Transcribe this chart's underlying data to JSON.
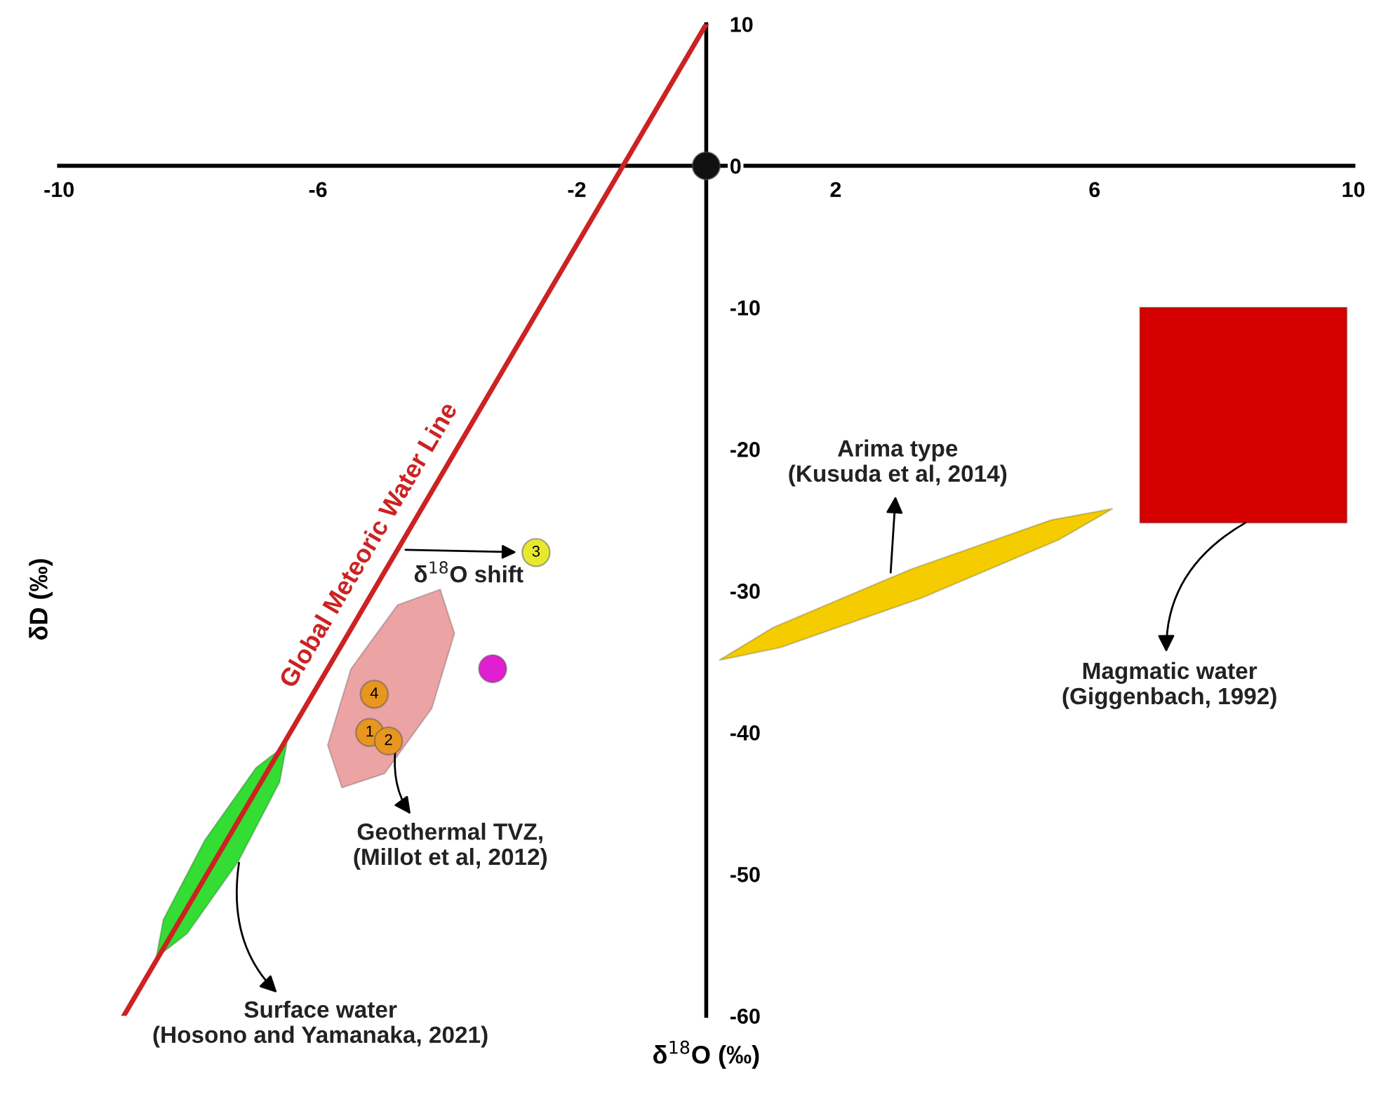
{
  "chart_data": {
    "type": "scatter",
    "xlabel": "δ$^{18}$O (‰)",
    "ylabel": "δD (‰)",
    "xlim": [
      -10,
      10
    ],
    "ylim": [
      -60,
      10
    ],
    "xticks": [
      -10,
      -6,
      -2,
      2,
      6,
      10
    ],
    "yticks": [
      10,
      0,
      -10,
      -20,
      -30,
      -40,
      -50,
      -60
    ],
    "series": [
      {
        "type": "line",
        "name": "Global Meteoric Water Line",
        "color": "#cc2222",
        "x": [
          -9.0,
          0
        ],
        "values": [
          -60,
          10
        ]
      },
      {
        "type": "area",
        "color": "#33dd33",
        "x": [
          -6.48,
          -6.59,
          -7.23,
          -8.02,
          -8.5,
          -8.39,
          -7.75,
          -6.96
        ],
        "values": [
          -40.8,
          -43.5,
          -49.1,
          -54.2,
          -55.9,
          -53.2,
          -47.6,
          -42.5
        ]
      },
      {
        "type": "area",
        "color": "#eba3a3",
        "x": [
          -4.11,
          -3.89,
          -4.24,
          -4.97,
          -5.63,
          -5.85,
          -5.49,
          -4.77
        ],
        "values": [
          -29.9,
          -33.0,
          -38.3,
          -42.9,
          -43.9,
          -40.9,
          -35.5,
          -31.0
        ]
      },
      {
        "type": "area",
        "color": "#f5cc00",
        "x": [
          6.28,
          5.45,
          3.33,
          1.15,
          0.2,
          1.03,
          3.15,
          5.33
        ],
        "values": [
          -24.2,
          -26.4,
          -30.5,
          -34.0,
          -34.9,
          -32.6,
          -28.5,
          -25.0
        ]
      },
      {
        "type": "area",
        "color": "#d40000",
        "x": [
          6.7,
          9.9,
          9.9,
          6.7
        ],
        "values": [
          -10,
          -10,
          -25.2,
          -25.2
        ]
      },
      {
        "marker": "circle",
        "x": [
          0,
          -5.2,
          -4.91,
          -2.63,
          -5.13,
          -3.3
        ],
        "values": [
          0,
          -40.0,
          -40.6,
          -27.3,
          -37.3,
          -35.5
        ],
        "colors": [
          "#111111",
          "#e8961e",
          "#e8961e",
          "#e8e830",
          "#e8961e",
          "#e020d0"
        ]
      }
    ],
    "annotations": [
      {
        "text": "Arima type\n(Kusuda et al, 2014)",
        "x": 2.85,
        "y": -28.7
      },
      {
        "text": "Magmatic water\n(Giggenbach, 1992)",
        "x": 8.33,
        "y": -25.2
      },
      {
        "text": "Geothermal TVZ,\n(Millot et al, 2012)",
        "x": -4.8,
        "y": -41.0
      },
      {
        "text": "Surface water\n(Hosono and Yamanaka, 2021)",
        "x": -7.22,
        "y": -49.2
      },
      {
        "text": "δ$^{18}$O shift",
        "x": -2.63,
        "y": -27.3
      },
      {
        "text": "1",
        "x": -5.2,
        "y": -40.0
      },
      {
        "text": "2",
        "x": -4.91,
        "y": -40.6
      },
      {
        "text": "3",
        "x": -2.63,
        "y": -27.3
      },
      {
        "text": "4",
        "x": -5.13,
        "y": -37.3
      }
    ]
  }
}
